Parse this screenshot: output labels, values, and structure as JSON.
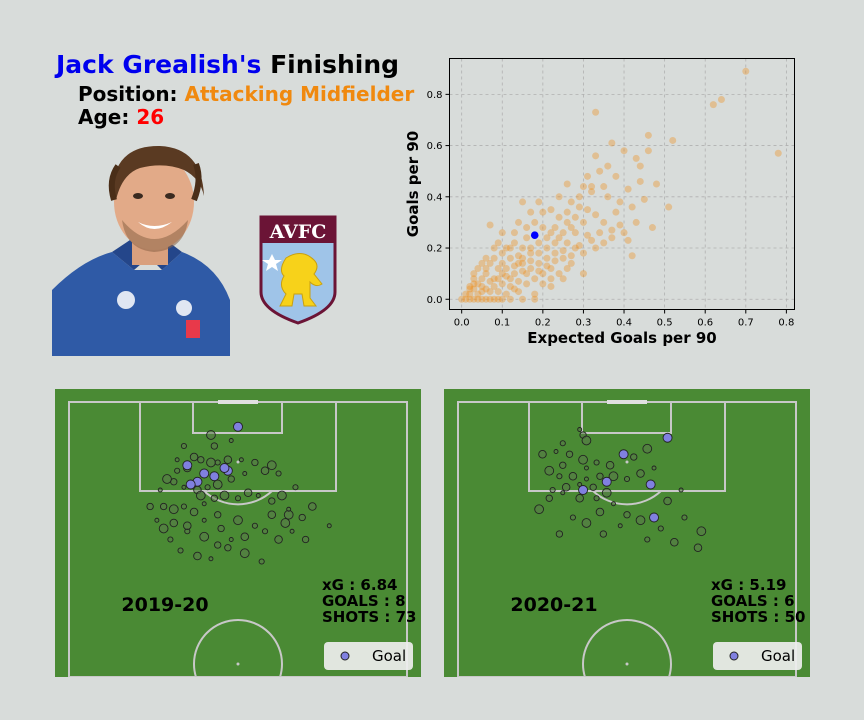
{
  "header": {
    "name": "Jack Grealish's",
    "title_rest": " Finishing",
    "position_label": "Position: ",
    "position_value": "Attacking Midfielder",
    "age_label": "Age: ",
    "age_value": "26"
  },
  "crest": {
    "text": "AVFC"
  },
  "colors": {
    "orange": "#f0890f",
    "blue": "#0000ff",
    "pitch": "#4a8a34",
    "goal": "#8080e0"
  },
  "chart_data": [
    {
      "type": "scatter",
      "xlabel": "Expected Goals per 90",
      "ylabel": "Goals per 90",
      "xlim": [
        -0.03,
        0.82
      ],
      "ylim": [
        -0.04,
        0.94
      ],
      "xticks": [
        "0.0",
        "0.1",
        "0.2",
        "0.3",
        "0.4",
        "0.5",
        "0.6",
        "0.7",
        "0.8"
      ],
      "yticks": [
        "0.0",
        "0.2",
        "0.4",
        "0.6",
        "0.8"
      ],
      "grid": true,
      "highlight": {
        "x": 0.18,
        "y": 0.25
      },
      "points": [
        [
          0.7,
          0.89
        ],
        [
          0.64,
          0.78
        ],
        [
          0.62,
          0.76
        ],
        [
          0.78,
          0.57
        ],
        [
          0.52,
          0.62
        ],
        [
          0.46,
          0.64
        ],
        [
          0.46,
          0.58
        ],
        [
          0.33,
          0.73
        ],
        [
          0.37,
          0.61
        ],
        [
          0.4,
          0.58
        ],
        [
          0.43,
          0.55
        ],
        [
          0.44,
          0.52
        ],
        [
          0.48,
          0.45
        ],
        [
          0.44,
          0.46
        ],
        [
          0.41,
          0.43
        ],
        [
          0.38,
          0.48
        ],
        [
          0.36,
          0.52
        ],
        [
          0.33,
          0.56
        ],
        [
          0.34,
          0.5
        ],
        [
          0.31,
          0.48
        ],
        [
          0.3,
          0.44
        ],
        [
          0.32,
          0.42
        ],
        [
          0.29,
          0.4
        ],
        [
          0.26,
          0.45
        ],
        [
          0.27,
          0.38
        ],
        [
          0.24,
          0.4
        ],
        [
          0.36,
          0.4
        ],
        [
          0.39,
          0.38
        ],
        [
          0.42,
          0.36
        ],
        [
          0.45,
          0.39
        ],
        [
          0.51,
          0.36
        ],
        [
          0.47,
          0.28
        ],
        [
          0.43,
          0.3
        ],
        [
          0.4,
          0.26
        ],
        [
          0.41,
          0.23
        ],
        [
          0.42,
          0.17
        ],
        [
          0.37,
          0.27
        ],
        [
          0.35,
          0.3
        ],
        [
          0.33,
          0.33
        ],
        [
          0.3,
          0.3
        ],
        [
          0.28,
          0.26
        ],
        [
          0.26,
          0.3
        ],
        [
          0.24,
          0.32
        ],
        [
          0.22,
          0.35
        ],
        [
          0.19,
          0.38
        ],
        [
          0.15,
          0.38
        ],
        [
          0.17,
          0.34
        ],
        [
          0.18,
          0.3
        ],
        [
          0.2,
          0.28
        ],
        [
          0.22,
          0.26
        ],
        [
          0.24,
          0.24
        ],
        [
          0.26,
          0.22
        ],
        [
          0.28,
          0.2
        ],
        [
          0.3,
          0.18
        ],
        [
          0.32,
          0.23
        ],
        [
          0.34,
          0.26
        ],
        [
          0.3,
          0.1
        ],
        [
          0.25,
          0.08
        ],
        [
          0.22,
          0.12
        ],
        [
          0.2,
          0.06
        ],
        [
          0.22,
          0.05
        ],
        [
          0.18,
          0.02
        ],
        [
          0.14,
          0.03
        ],
        [
          0.16,
          0.1
        ],
        [
          0.14,
          0.14
        ],
        [
          0.12,
          0.16
        ],
        [
          0.1,
          0.18
        ],
        [
          0.08,
          0.2
        ],
        [
          0.07,
          0.29
        ],
        [
          0.1,
          0.26
        ],
        [
          0.13,
          0.22
        ],
        [
          0.15,
          0.2
        ],
        [
          0.17,
          0.18
        ],
        [
          0.19,
          0.22
        ],
        [
          0.21,
          0.2
        ],
        [
          0.23,
          0.18
        ],
        [
          0.25,
          0.16
        ],
        [
          0.27,
          0.14
        ],
        [
          0.12,
          0.08
        ],
        [
          0.1,
          0.1
        ],
        [
          0.09,
          0.12
        ],
        [
          0.07,
          0.14
        ],
        [
          0.06,
          0.1
        ],
        [
          0.05,
          0.08
        ],
        [
          0.04,
          0.06
        ],
        [
          0.03,
          0.04
        ],
        [
          0.02,
          0.05
        ],
        [
          0.04,
          0.12
        ],
        [
          0.06,
          0.16
        ],
        [
          0.08,
          0.08
        ],
        [
          0.11,
          0.12
        ],
        [
          0.13,
          0.1
        ],
        [
          0.15,
          0.14
        ],
        [
          0.17,
          0.12
        ],
        [
          0.19,
          0.14
        ],
        [
          0.21,
          0.16
        ],
        [
          0.23,
          0.22
        ],
        [
          0.25,
          0.26
        ],
        [
          0.27,
          0.28
        ],
        [
          0.16,
          0.24
        ],
        [
          0.12,
          0.2
        ],
        [
          0.14,
          0.17
        ],
        [
          0.1,
          0.14
        ],
        [
          0.08,
          0.16
        ],
        [
          0.06,
          0.12
        ],
        [
          0.05,
          0.14
        ],
        [
          0.03,
          0.08
        ],
        [
          0.02,
          0.02
        ],
        [
          0.04,
          0.02
        ],
        [
          0.06,
          0.04
        ],
        [
          0.08,
          0.05
        ],
        [
          0.1,
          0.06
        ],
        [
          0.12,
          0.05
        ],
        [
          0.14,
          0.07
        ],
        [
          0.16,
          0.06
        ],
        [
          0.18,
          0.08
        ],
        [
          0.2,
          0.1
        ],
        [
          0.22,
          0.08
        ],
        [
          0.24,
          0.1
        ],
        [
          0.26,
          0.12
        ],
        [
          0.09,
          0.03
        ],
        [
          0.11,
          0.02
        ],
        [
          0.13,
          0.04
        ],
        [
          0.07,
          0.07
        ],
        [
          0.05,
          0.05
        ],
        [
          0.03,
          0.1
        ],
        [
          0.15,
          0.16
        ],
        [
          0.17,
          0.2
        ],
        [
          0.19,
          0.18
        ],
        [
          0.21,
          0.24
        ],
        [
          0.2,
          0.34
        ],
        [
          0.18,
          0.25
        ],
        [
          0.23,
          0.28
        ],
        [
          0.26,
          0.34
        ],
        [
          0.28,
          0.32
        ],
        [
          0.31,
          0.35
        ],
        [
          0.29,
          0.36
        ],
        [
          0.32,
          0.44
        ],
        [
          0.35,
          0.44
        ],
        [
          0.38,
          0.34
        ],
        [
          0.0,
          0.0
        ],
        [
          0.01,
          0.0
        ],
        [
          0.02,
          0.0
        ],
        [
          0.03,
          0.0
        ],
        [
          0.04,
          0.0
        ],
        [
          0.05,
          0.0
        ],
        [
          0.06,
          0.0
        ],
        [
          0.07,
          0.0
        ],
        [
          0.08,
          0.0
        ],
        [
          0.09,
          0.0
        ],
        [
          0.1,
          0.0
        ],
        [
          0.12,
          0.0
        ],
        [
          0.15,
          0.0
        ],
        [
          0.18,
          0.0
        ],
        [
          0.01,
          0.02
        ],
        [
          0.02,
          0.04
        ],
        [
          0.03,
          0.06
        ],
        [
          0.05,
          0.03
        ],
        [
          0.07,
          0.03
        ],
        [
          0.09,
          0.08
        ],
        [
          0.11,
          0.09
        ],
        [
          0.13,
          0.13
        ],
        [
          0.15,
          0.11
        ],
        [
          0.17,
          0.15
        ],
        [
          0.19,
          0.11
        ],
        [
          0.21,
          0.13
        ],
        [
          0.23,
          0.15
        ],
        [
          0.25,
          0.19
        ],
        [
          0.27,
          0.17
        ],
        [
          0.29,
          0.21
        ],
        [
          0.31,
          0.25
        ],
        [
          0.33,
          0.2
        ],
        [
          0.35,
          0.22
        ],
        [
          0.37,
          0.24
        ],
        [
          0.39,
          0.29
        ],
        [
          0.11,
          0.2
        ],
        [
          0.09,
          0.22
        ],
        [
          0.13,
          0.26
        ],
        [
          0.14,
          0.3
        ],
        [
          0.16,
          0.28
        ]
      ]
    },
    {
      "type": "scatter",
      "season": "2019-20",
      "stats": [
        "xG : 6.84",
        "GOALS : 8",
        "SHOTS : 73"
      ],
      "legend": "Goal",
      "goals": [
        [
          0.5,
          0.09
        ],
        [
          0.47,
          0.25
        ],
        [
          0.35,
          0.23
        ],
        [
          0.43,
          0.27
        ],
        [
          0.38,
          0.29
        ],
        [
          0.4,
          0.26
        ],
        [
          0.46,
          0.24
        ],
        [
          0.36,
          0.3
        ]
      ],
      "shots": [
        [
          0.48,
          0.14
        ],
        [
          0.43,
          0.16
        ],
        [
          0.42,
          0.12
        ],
        [
          0.34,
          0.16
        ],
        [
          0.37,
          0.2
        ],
        [
          0.32,
          0.21
        ],
        [
          0.39,
          0.21
        ],
        [
          0.42,
          0.22
        ],
        [
          0.44,
          0.22
        ],
        [
          0.47,
          0.21
        ],
        [
          0.51,
          0.21
        ],
        [
          0.55,
          0.22
        ],
        [
          0.6,
          0.23
        ],
        [
          0.62,
          0.26
        ],
        [
          0.58,
          0.25
        ],
        [
          0.52,
          0.26
        ],
        [
          0.48,
          0.28
        ],
        [
          0.44,
          0.3
        ],
        [
          0.41,
          0.31
        ],
        [
          0.38,
          0.32
        ],
        [
          0.34,
          0.31
        ],
        [
          0.31,
          0.29
        ],
        [
          0.29,
          0.28
        ],
        [
          0.32,
          0.25
        ],
        [
          0.35,
          0.24
        ],
        [
          0.27,
          0.32
        ],
        [
          0.28,
          0.38
        ],
        [
          0.31,
          0.39
        ],
        [
          0.34,
          0.38
        ],
        [
          0.37,
          0.4
        ],
        [
          0.4,
          0.37
        ],
        [
          0.43,
          0.35
        ],
        [
          0.46,
          0.34
        ],
        [
          0.5,
          0.35
        ],
        [
          0.53,
          0.33
        ],
        [
          0.56,
          0.34
        ],
        [
          0.6,
          0.36
        ],
        [
          0.63,
          0.34
        ],
        [
          0.67,
          0.31
        ],
        [
          0.72,
          0.38
        ],
        [
          0.77,
          0.45
        ],
        [
          0.69,
          0.42
        ],
        [
          0.64,
          0.44
        ],
        [
          0.58,
          0.47
        ],
        [
          0.52,
          0.49
        ],
        [
          0.48,
          0.5
        ],
        [
          0.44,
          0.52
        ],
        [
          0.4,
          0.49
        ],
        [
          0.35,
          0.47
        ],
        [
          0.31,
          0.44
        ],
        [
          0.26,
          0.43
        ],
        [
          0.24,
          0.38
        ],
        [
          0.28,
          0.46
        ],
        [
          0.33,
          0.54
        ],
        [
          0.38,
          0.56
        ],
        [
          0.42,
          0.57
        ],
        [
          0.47,
          0.53
        ],
        [
          0.52,
          0.55
        ],
        [
          0.57,
          0.58
        ],
        [
          0.62,
          0.5
        ],
        [
          0.66,
          0.47
        ],
        [
          0.7,
          0.5
        ],
        [
          0.65,
          0.41
        ],
        [
          0.3,
          0.5
        ],
        [
          0.35,
          0.45
        ],
        [
          0.4,
          0.43
        ],
        [
          0.45,
          0.46
        ],
        [
          0.5,
          0.43
        ],
        [
          0.55,
          0.45
        ],
        [
          0.6,
          0.41
        ],
        [
          0.65,
          0.39
        ],
        [
          0.44,
          0.41
        ],
        [
          0.39,
          0.34
        ]
      ]
    },
    {
      "type": "scatter",
      "season": "2020-21",
      "stats": [
        "xG : 5.19",
        "GOALS : 6",
        "SHOTS : 50"
      ],
      "legend": "Goal",
      "goals": [
        [
          0.62,
          0.13
        ],
        [
          0.49,
          0.19
        ],
        [
          0.44,
          0.29
        ],
        [
          0.37,
          0.32
        ],
        [
          0.57,
          0.3
        ],
        [
          0.58,
          0.42
        ]
      ],
      "shots": [
        [
          0.36,
          0.1
        ],
        [
          0.37,
          0.12
        ],
        [
          0.38,
          0.14
        ],
        [
          0.31,
          0.15
        ],
        [
          0.25,
          0.19
        ],
        [
          0.29,
          0.18
        ],
        [
          0.33,
          0.19
        ],
        [
          0.37,
          0.21
        ],
        [
          0.41,
          0.22
        ],
        [
          0.45,
          0.23
        ],
        [
          0.38,
          0.24
        ],
        [
          0.31,
          0.23
        ],
        [
          0.27,
          0.25
        ],
        [
          0.3,
          0.27
        ],
        [
          0.34,
          0.27
        ],
        [
          0.38,
          0.28
        ],
        [
          0.42,
          0.27
        ],
        [
          0.46,
          0.27
        ],
        [
          0.5,
          0.28
        ],
        [
          0.54,
          0.26
        ],
        [
          0.58,
          0.24
        ],
        [
          0.52,
          0.2
        ],
        [
          0.56,
          0.17
        ],
        [
          0.28,
          0.32
        ],
        [
          0.32,
          0.31
        ],
        [
          0.36,
          0.3
        ],
        [
          0.4,
          0.31
        ],
        [
          0.44,
          0.33
        ],
        [
          0.41,
          0.35
        ],
        [
          0.36,
          0.35
        ],
        [
          0.31,
          0.33
        ],
        [
          0.27,
          0.35
        ],
        [
          0.24,
          0.39
        ],
        [
          0.34,
          0.42
        ],
        [
          0.42,
          0.4
        ],
        [
          0.46,
          0.37
        ],
        [
          0.5,
          0.41
        ],
        [
          0.54,
          0.43
        ],
        [
          0.6,
          0.46
        ],
        [
          0.64,
          0.51
        ],
        [
          0.48,
          0.45
        ],
        [
          0.43,
          0.48
        ],
        [
          0.38,
          0.44
        ],
        [
          0.56,
          0.5
        ],
        [
          0.62,
          0.36
        ],
        [
          0.66,
          0.32
        ],
        [
          0.3,
          0.48
        ],
        [
          0.72,
          0.47
        ],
        [
          0.67,
          0.42
        ],
        [
          0.71,
          0.53
        ]
      ]
    }
  ]
}
